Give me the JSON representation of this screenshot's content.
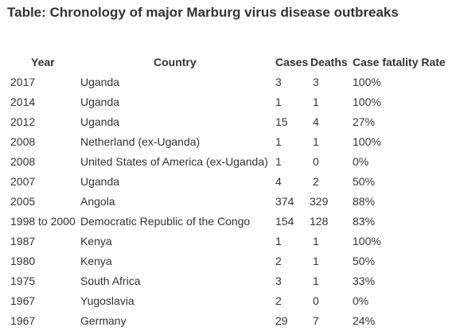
{
  "title": "Table: Chronology of major Marburg virus disease outbreaks",
  "headers": {
    "year": "Year",
    "country": "Country",
    "cases": "Cases",
    "deaths": "Deaths",
    "cfr": "Case fatality Rate"
  },
  "rows": [
    {
      "year": "2017",
      "country": "Uganda",
      "cases": "3",
      "deaths": "3",
      "cfr": "100%"
    },
    {
      "year": "2014",
      "country": "Uganda",
      "cases": "1",
      "deaths": "1",
      "cfr": "100%"
    },
    {
      "year": "2012",
      "country": "Uganda",
      "cases": "15",
      "deaths": "4",
      "cfr": "27%"
    },
    {
      "year": "2008",
      "country": "Netherland (ex-Uganda)",
      "cases": "1",
      "deaths": "1",
      "cfr": "100%"
    },
    {
      "year": "2008",
      "country": "United States of America (ex-Uganda)",
      "cases": "1",
      "deaths": "0",
      "cfr": "0%"
    },
    {
      "year": "2007",
      "country": "Uganda",
      "cases": "4",
      "deaths": "2",
      "cfr": "50%"
    },
    {
      "year": "2005",
      "country": "Angola",
      "cases": "374",
      "deaths": "329",
      "cfr": "88%"
    },
    {
      "year": "1998 to 2000",
      "country": "Democratic Republic of the Congo",
      "cases": "154",
      "deaths": "128",
      "cfr": "83%"
    },
    {
      "year": "1987",
      "country": "Kenya",
      "cases": "1",
      "deaths": "1",
      "cfr": "100%"
    },
    {
      "year": "1980",
      "country": "Kenya",
      "cases": "2",
      "deaths": "1",
      "cfr": "50%"
    },
    {
      "year": "1975",
      "country": "South Africa",
      "cases": "3",
      "deaths": "1",
      "cfr": "33%"
    },
    {
      "year": "1967",
      "country": "Yugoslavia",
      "cases": "2",
      "deaths": "0",
      "cfr": "0%"
    },
    {
      "year": "1967",
      "country": "Germany",
      "cases": "29",
      "deaths": "7",
      "cfr": "24%"
    }
  ]
}
